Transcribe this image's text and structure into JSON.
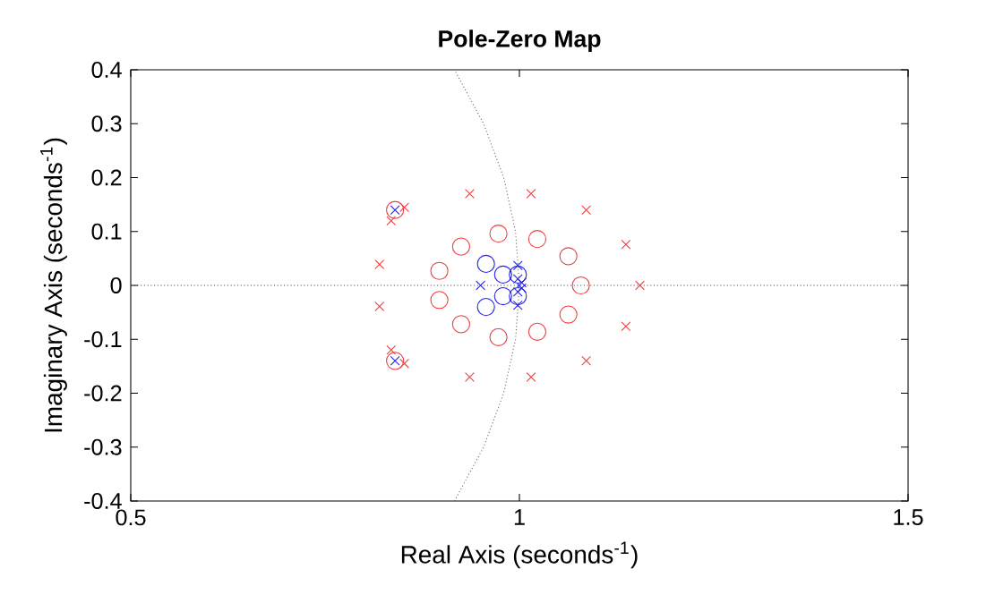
{
  "chart_data": {
    "type": "scatter",
    "title": "Pole-Zero Map",
    "xlabel": "Real Axis (seconds$^{-1}$)",
    "ylabel": "Imaginary Axis (seconds$^{-1}$)",
    "xlim": [
      0.5,
      1.5
    ],
    "ylim": [
      -0.4,
      0.4
    ],
    "xticks": [
      0.5,
      1,
      1.5
    ],
    "yticks": [
      -0.4,
      -0.3,
      -0.2,
      -0.1,
      0,
      0.1,
      0.2,
      0.3,
      0.4
    ],
    "grid": false,
    "ref_lines": [
      {
        "axis": "y",
        "value": 0,
        "color": "#404040",
        "line_style": "dotted"
      }
    ],
    "series": [
      {
        "type": "line",
        "color": "#606060",
        "line_style": "dotted",
        "marker": "none",
        "x": [
          0.9165,
          0.9539,
          0.9798,
          0.995,
          1,
          0.995,
          0.9798,
          0.9539,
          0.9165
        ],
        "values": [
          -0.4,
          -0.3,
          -0.2,
          -0.1,
          0,
          0.1,
          0.2,
          0.3,
          0.4
        ]
      },
      {
        "color": "#f03c3c",
        "marker": "circle",
        "x": [
          0.84,
          0.84,
          0.925,
          0.925,
          0.897,
          0.897,
          0.973,
          0.973,
          1.023,
          1.023,
          1.063,
          1.063,
          1.079
        ],
        "values": [
          0.14,
          -0.14,
          0.072,
          -0.072,
          0.027,
          -0.027,
          0.096,
          -0.096,
          0.086,
          -0.086,
          0.054,
          -0.054,
          0
        ]
      },
      {
        "color": "#f03c3c",
        "marker": "cross",
        "x": [
          0.936,
          0.936,
          1.015,
          1.015,
          0.82,
          0.82,
          0.835,
          0.835,
          0.852,
          0.852,
          1.086,
          1.086,
          1.137,
          1.137,
          1.155
        ],
        "values": [
          0.17,
          -0.17,
          0.17,
          -0.17,
          0.039,
          -0.039,
          0.12,
          -0.12,
          0.145,
          -0.145,
          0.14,
          -0.14,
          0.076,
          -0.076,
          0
        ]
      },
      {
        "color": "#2020f0",
        "marker": "circle",
        "x": [
          0.957,
          0.957,
          0.979,
          0.979,
          0.998,
          0.998
        ],
        "values": [
          0.04,
          -0.04,
          0.02,
          -0.02,
          0.02,
          -0.02
        ]
      },
      {
        "color": "#2020f0",
        "marker": "cross",
        "x": [
          0.84,
          0.84,
          0.95,
          0.998,
          0.998,
          0.998,
          0.998,
          1.003,
          1.003
        ],
        "values": [
          0.14,
          -0.14,
          0,
          0.037,
          -0.037,
          0.012,
          -0.012,
          0.005,
          -0.005
        ]
      }
    ]
  }
}
